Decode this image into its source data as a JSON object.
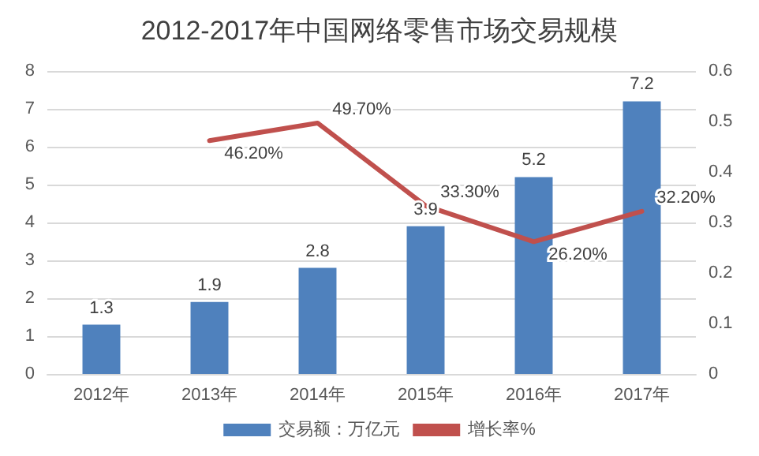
{
  "chart_data": {
    "type": "bar",
    "title": "2012-2017年中国网络零售市场交易规模",
    "categories": [
      "2012年",
      "2013年",
      "2014年",
      "2015年",
      "2016年",
      "2017年"
    ],
    "series": [
      {
        "name": "交易额：万亿元",
        "type": "bar",
        "color": "#4f81bd",
        "values": [
          1.3,
          1.9,
          2.8,
          3.9,
          5.2,
          7.2
        ],
        "value_labels": [
          "1.3",
          "1.9",
          "2.8",
          "3.9",
          "5.2",
          "7.2"
        ]
      },
      {
        "name": "增长率%",
        "type": "line",
        "axis": "y2",
        "color": "#c0504d",
        "values": [
          null,
          0.462,
          0.497,
          0.333,
          0.262,
          0.322
        ],
        "value_labels": [
          null,
          "46.20%",
          "49.70%",
          "33.30%",
          "26.20%",
          "32.20%"
        ]
      }
    ],
    "ylim": [
      0,
      8
    ],
    "yticks": [
      0,
      1,
      2,
      3,
      4,
      5,
      6,
      7,
      8
    ],
    "y2lim": [
      0,
      0.6
    ],
    "y2ticks": [
      0,
      0.1,
      0.2,
      0.3,
      0.4,
      0.5,
      0.6
    ],
    "grid": "y",
    "legend": "bottom",
    "marker": "none",
    "line_style": "solid"
  }
}
